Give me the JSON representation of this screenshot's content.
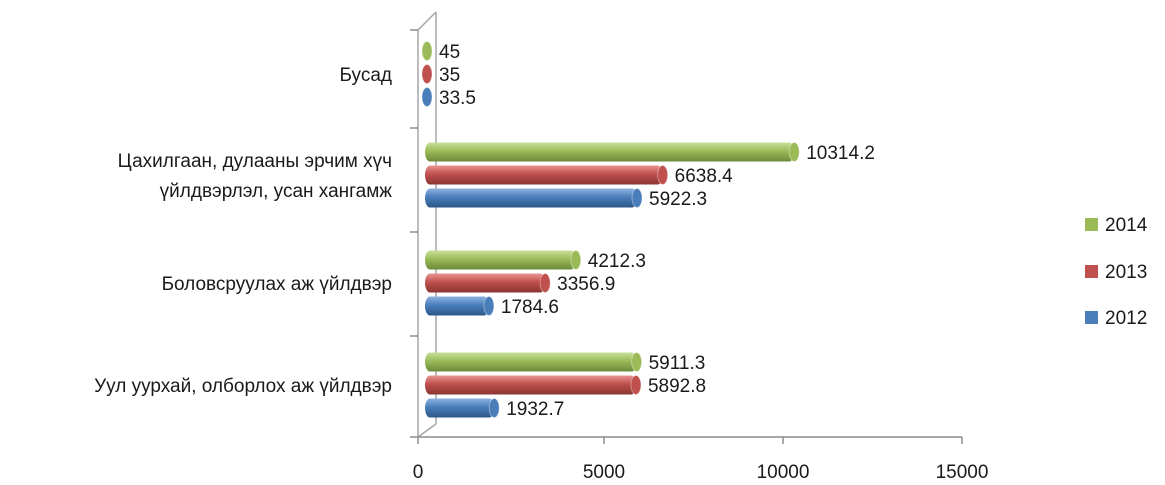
{
  "chart_data": {
    "type": "bar",
    "orientation": "horizontal",
    "title": "",
    "xlabel": "",
    "ylabel": "",
    "categories": [
      [
        "Уул уурхай, олборлох аж үйлдвэр"
      ],
      [
        "Боловсруулах аж үйлдвэр"
      ],
      [
        "Цахилгаан, дулааны эрчим хүч",
        "үйлдвэрлэл, усан хангамж"
      ],
      [
        "Бусад"
      ]
    ],
    "series": [
      {
        "name": "2012",
        "color": "#4a7ebb",
        "values": [
          1932.7,
          1784.6,
          5922.3,
          33.5
        ],
        "labels": [
          "1932.7",
          "1784.6",
          "5922.3",
          "33.5"
        ]
      },
      {
        "name": "2013",
        "color": "#c0504d",
        "values": [
          5892.8,
          3356.9,
          6638.4,
          35
        ],
        "labels": [
          "5892.8",
          "3356.9",
          "6638.4",
          "35"
        ]
      },
      {
        "name": "2014",
        "color": "#9bbb59",
        "values": [
          5911.3,
          4212.3,
          10314.2,
          45
        ],
        "labels": [
          "5911.3",
          "4212.3",
          "10314.2",
          "45"
        ]
      }
    ],
    "xlim": [
      0,
      15000
    ],
    "xticks": [
      "0",
      "5000",
      "10000",
      "15000"
    ],
    "tick_values": [
      0,
      5000,
      10000,
      15000
    ],
    "legend": {
      "position": "right",
      "order": [
        "2014",
        "2013",
        "2012"
      ]
    },
    "grid": false
  }
}
